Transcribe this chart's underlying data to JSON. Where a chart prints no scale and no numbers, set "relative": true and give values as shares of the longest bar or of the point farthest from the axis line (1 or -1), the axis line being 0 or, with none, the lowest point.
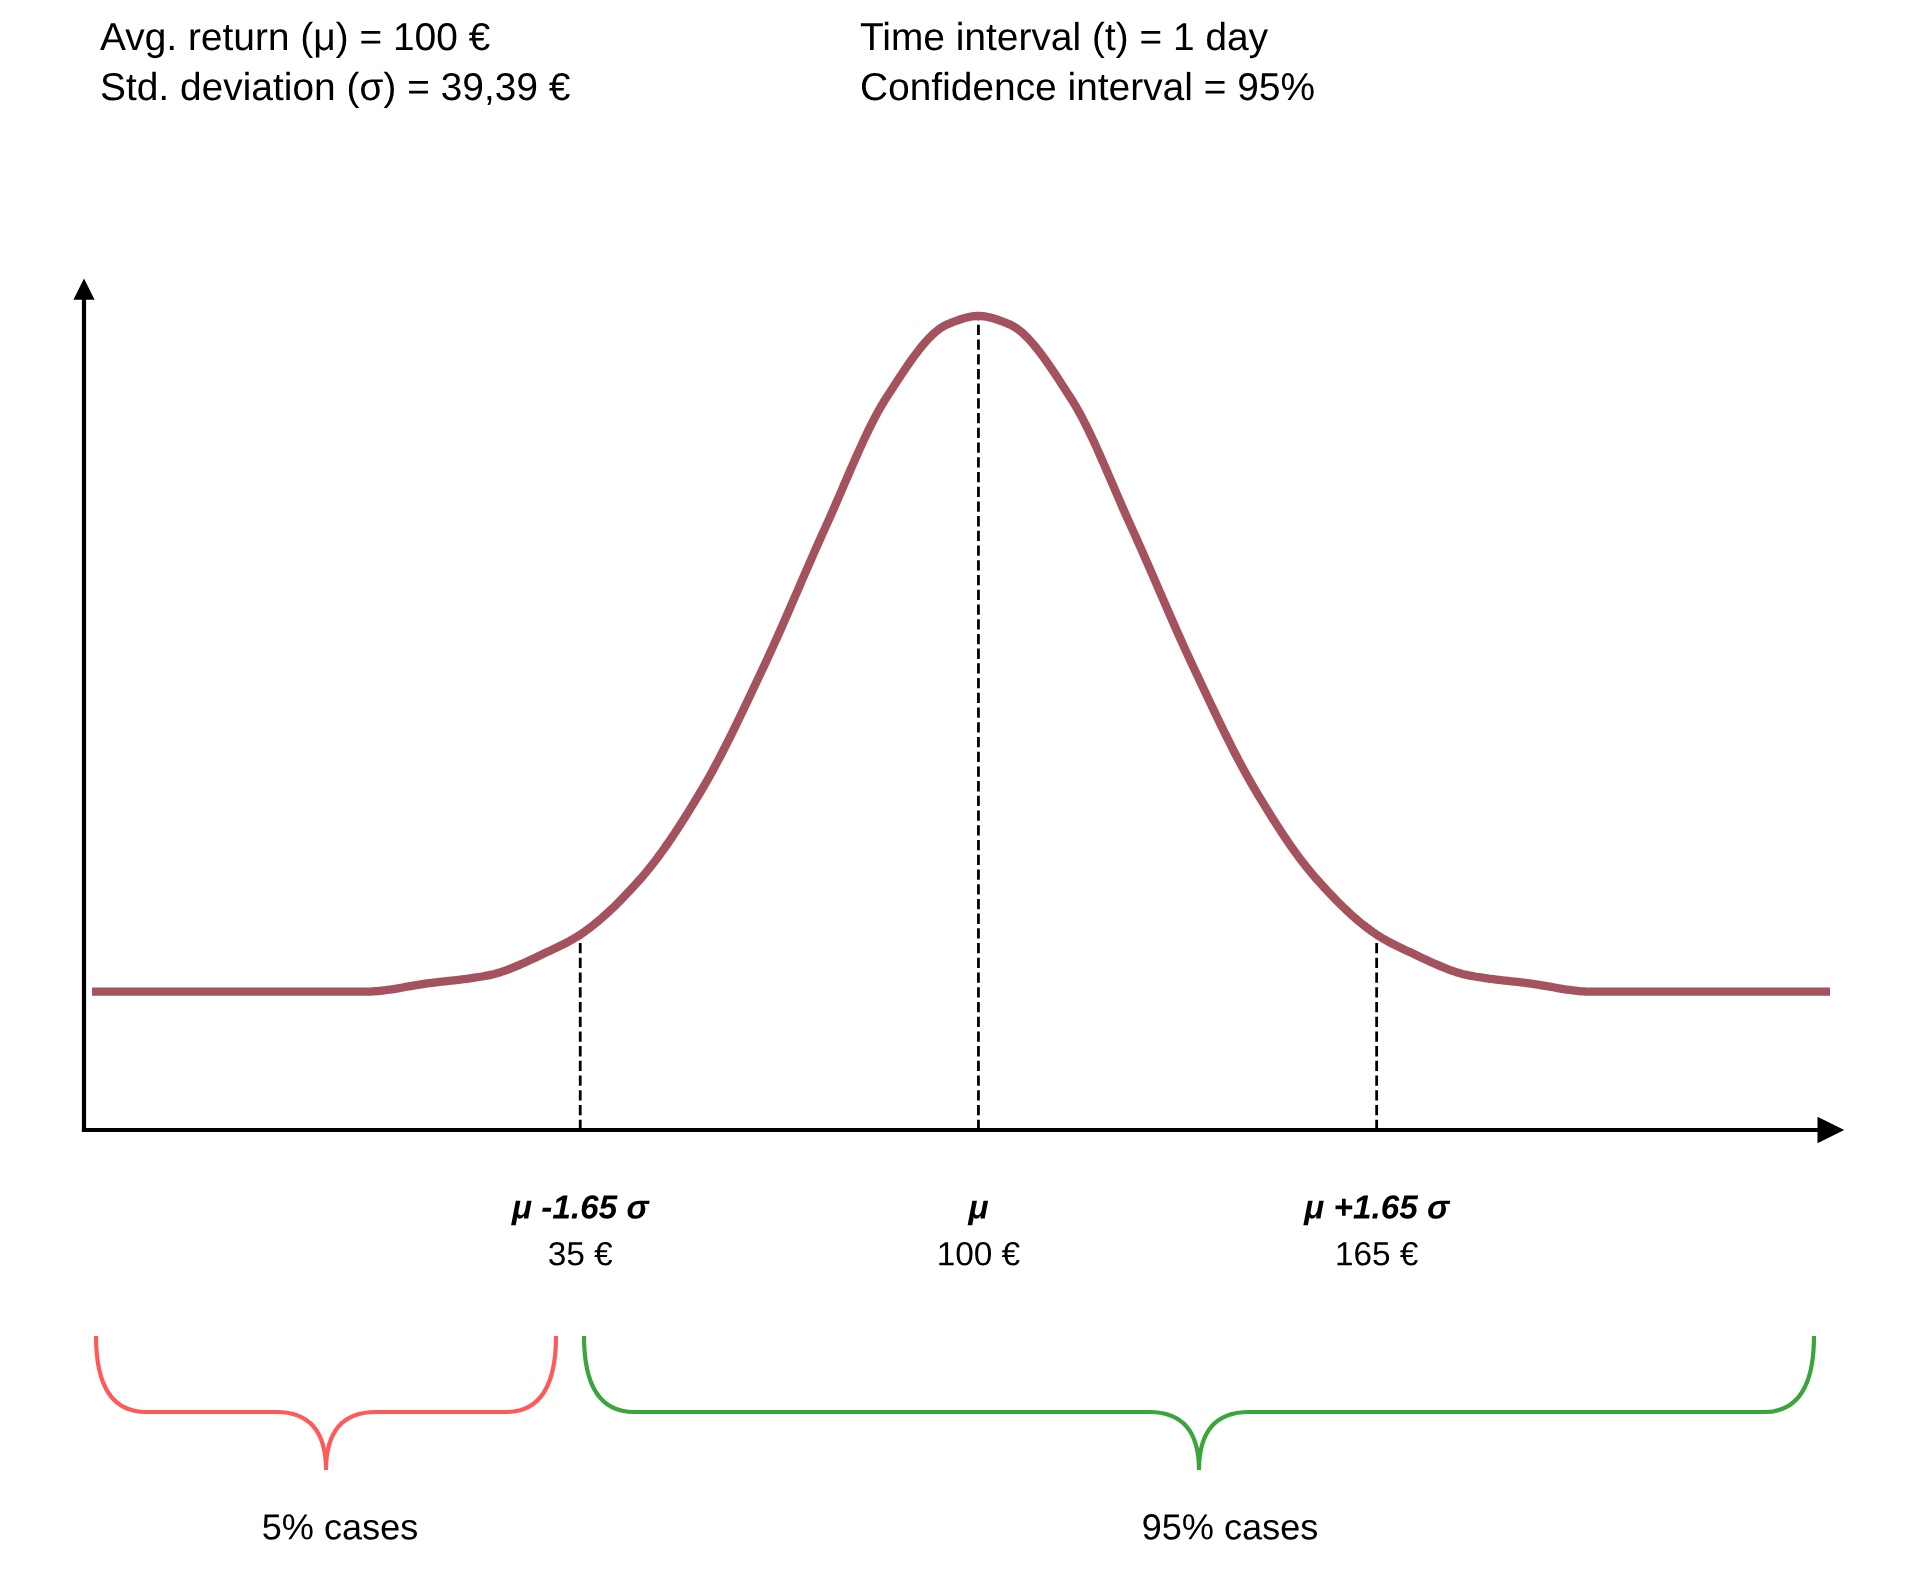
{
  "chart_data": {
    "type": "line",
    "relative": true,
    "x": [
      -44,
      0,
      10,
      20,
      30,
      35,
      45,
      55,
      65,
      75,
      85,
      95,
      100,
      105,
      115,
      125,
      135,
      145,
      155,
      165,
      170,
      180,
      190,
      200,
      239
    ],
    "series": [
      {
        "color": "#a5525f",
        "values": [
          0.17,
          0.17,
          0.18,
          0.19,
          0.22,
          0.24,
          0.31,
          0.42,
          0.57,
          0.74,
          0.9,
          0.99,
          1,
          0.99,
          0.9,
          0.74,
          0.57,
          0.42,
          0.31,
          0.24,
          0.22,
          0.19,
          0.18,
          0.17,
          0.17
        ]
      }
    ],
    "xlim": [
      -46,
      239
    ],
    "xticks": [
      {
        "value": 35,
        "label": "35 €"
      },
      {
        "value": 100,
        "label": "100 €"
      },
      {
        "value": 165,
        "label": "165 €"
      }
    ],
    "ref_lines": [
      {
        "axis": "x",
        "value": 35,
        "label": "μ -1.65 σ",
        "line_style": "dashed",
        "color": "#000000"
      },
      {
        "axis": "x",
        "value": 100,
        "label": "μ",
        "line_style": "dashed",
        "color": "#000000"
      },
      {
        "axis": "x",
        "value": 165,
        "label": "μ +1.65 σ",
        "line_style": "dashed",
        "color": "#000000"
      }
    ],
    "annotations": [
      "Avg. return (μ) = 100 €",
      "Std. deviation (σ) = 39,39 €",
      "Time interval (t) = 1 day",
      "Confidence interval = 95%",
      "5% cases",
      "95% cases"
    ],
    "grid": false
  }
}
